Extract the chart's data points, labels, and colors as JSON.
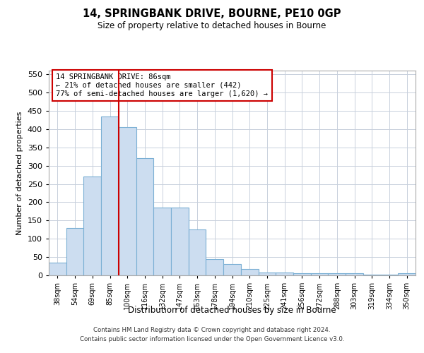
{
  "title1": "14, SPRINGBANK DRIVE, BOURNE, PE10 0GP",
  "title2": "Size of property relative to detached houses in Bourne",
  "xlabel": "Distribution of detached houses by size in Bourne",
  "ylabel": "Number of detached properties",
  "categories": [
    "38sqm",
    "54sqm",
    "69sqm",
    "85sqm",
    "100sqm",
    "116sqm",
    "132sqm",
    "147sqm",
    "163sqm",
    "178sqm",
    "194sqm",
    "210sqm",
    "225sqm",
    "241sqm",
    "256sqm",
    "272sqm",
    "288sqm",
    "303sqm",
    "319sqm",
    "334sqm",
    "350sqm"
  ],
  "bar_heights": [
    35,
    130,
    270,
    435,
    405,
    320,
    185,
    185,
    125,
    45,
    30,
    18,
    8,
    8,
    5,
    5,
    5,
    5,
    2,
    2,
    5
  ],
  "bar_color": "#ccddf0",
  "bar_edge_color": "#7aafd4",
  "vline_color": "#cc0000",
  "annotation_text": "14 SPRINGBANK DRIVE: 86sqm\n← 21% of detached houses are smaller (442)\n77% of semi-detached houses are larger (1,620) →",
  "annotation_box_color": "#ffffff",
  "annotation_box_edge": "#cc0000",
  "ylim": [
    0,
    560
  ],
  "yticks": [
    0,
    50,
    100,
    150,
    200,
    250,
    300,
    350,
    400,
    450,
    500,
    550
  ],
  "footer1": "Contains HM Land Registry data © Crown copyright and database right 2024.",
  "footer2": "Contains public sector information licensed under the Open Government Licence v3.0.",
  "background_color": "#ffffff",
  "grid_color": "#c8d0dc"
}
